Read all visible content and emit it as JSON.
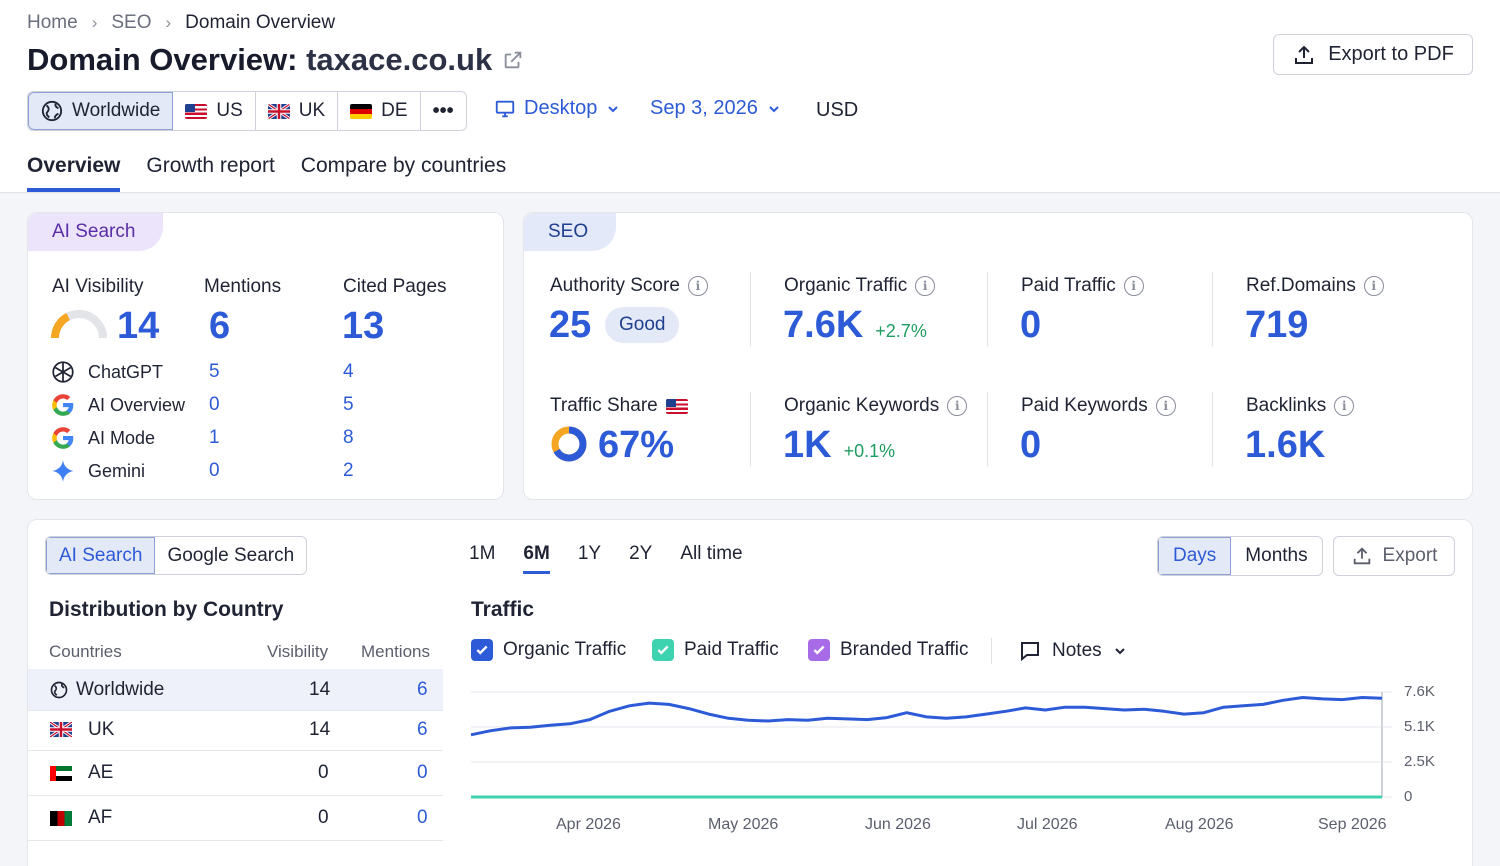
{
  "breadcrumb": [
    "Home",
    "SEO",
    "Domain Overview"
  ],
  "page_title": {
    "prefix": "Domain Overview:",
    "domain": "taxace.co.uk"
  },
  "export_pdf_label": "Export to PDF",
  "geo_filter": [
    {
      "label": "Worldwide",
      "icon": "globe-icon",
      "selected": true
    },
    {
      "label": "US",
      "icon": "us-flag-icon"
    },
    {
      "label": "UK",
      "icon": "uk-flag-icon"
    },
    {
      "label": "DE",
      "icon": "de-flag-icon"
    },
    {
      "label": "•••",
      "icon": "more-icon"
    }
  ],
  "device": "Desktop",
  "date": "Sep 3, 2026",
  "currency": "USD",
  "tabs": [
    "Overview",
    "Growth report",
    "Compare by countries"
  ],
  "ai_card": {
    "pill": "AI Search",
    "visibility_label": "AI Visibility",
    "visibility_value": "14",
    "visibility_gauge": 0.14,
    "mentions_label": "Mentions",
    "mentions_value": "6",
    "cited_label": "Cited Pages",
    "cited_value": "13",
    "sources": [
      {
        "name": "ChatGPT",
        "mentions": "5",
        "cited": "4",
        "icon": "chatgpt-icon"
      },
      {
        "name": "AI Overview",
        "mentions": "0",
        "cited": "5",
        "icon": "google-icon"
      },
      {
        "name": "AI Mode",
        "mentions": "1",
        "cited": "8",
        "icon": "google-icon"
      },
      {
        "name": "Gemini",
        "mentions": "0",
        "cited": "2",
        "icon": "gemini-icon"
      }
    ]
  },
  "seo_card": {
    "pill": "SEO",
    "authority_label": "Authority Score",
    "authority_value": "25",
    "authority_badge": "Good",
    "organic_label": "Organic Traffic",
    "organic_value": "7.6K",
    "organic_delta": "+2.7%",
    "paid_label": "Paid Traffic",
    "paid_value": "0",
    "refdomains_label": "Ref.Domains",
    "refdomains_value": "719",
    "share_label": "Traffic Share",
    "share_value": "67%",
    "share_fraction": 0.67,
    "org_kw_label": "Organic Keywords",
    "org_kw_value": "1K",
    "org_kw_delta": "+0.1%",
    "paid_kw_label": "Paid Keywords",
    "paid_kw_value": "0",
    "backlinks_label": "Backlinks",
    "backlinks_value": "1.6K"
  },
  "bottom": {
    "search_toggle": [
      "AI Search",
      "Google Search"
    ],
    "distribution_title": "Distribution by Country",
    "columns": [
      "Countries",
      "Visibility",
      "Mentions"
    ],
    "rows": [
      {
        "country": "Worldwide",
        "visibility": "14",
        "mentions": "6",
        "icon": "globe-icon"
      },
      {
        "country": "UK",
        "visibility": "14",
        "mentions": "6",
        "icon": "uk-flag-icon"
      },
      {
        "country": "AE",
        "visibility": "0",
        "mentions": "0",
        "icon": "ae-flag-icon"
      },
      {
        "country": "AF",
        "visibility": "0",
        "mentions": "0",
        "icon": "af-flag-icon"
      }
    ],
    "periods": [
      "1M",
      "6M",
      "1Y",
      "2Y",
      "All time"
    ],
    "active_period": "6M",
    "granularity": [
      "Days",
      "Months"
    ],
    "export_label": "Export",
    "traffic_title": "Traffic",
    "legend": [
      {
        "label": "Organic Traffic",
        "color": "#2d5bd8"
      },
      {
        "label": "Paid Traffic",
        "color": "#3ed3b0"
      },
      {
        "label": "Branded Traffic",
        "color": "#a86be8"
      }
    ],
    "notes_label": "Notes"
  },
  "colors": {
    "accent": "#2d5bd8",
    "positive": "#1e9d61",
    "ai_pill": "#ece4fb",
    "seo_pill": "#e3e9f9"
  },
  "chart_data": {
    "type": "line",
    "title": "Traffic",
    "xlabel": "",
    "ylabel": "",
    "x_tick_labels": [
      "Apr 2026",
      "May 2026",
      "Jun 2026",
      "Jul 2026",
      "Aug 2026",
      "Sep 2026"
    ],
    "y_tick_labels": [
      "0",
      "2.5K",
      "5.1K",
      "7.6K"
    ],
    "ylim": [
      0,
      7600
    ],
    "series": [
      {
        "name": "Organic Traffic",
        "values": [
          4500,
          4800,
          5000,
          5050,
          5200,
          5300,
          5600,
          6200,
          6600,
          6800,
          6700,
          6400,
          6000,
          5700,
          5550,
          5500,
          5600,
          5550,
          5700,
          5650,
          5600,
          5750,
          6100,
          5800,
          5700,
          5800,
          6000,
          6200,
          6450,
          6300,
          6500,
          6500,
          6400,
          6300,
          6350,
          6200,
          6000,
          6100,
          6500,
          6600,
          6700,
          7000,
          7200,
          7100,
          7050,
          7200,
          7150
        ]
      },
      {
        "name": "Paid Traffic",
        "values": [
          0,
          0,
          0,
          0,
          0,
          0
        ]
      },
      {
        "name": "Branded Traffic",
        "values": [
          0,
          0,
          0,
          0,
          0,
          0
        ]
      }
    ]
  }
}
